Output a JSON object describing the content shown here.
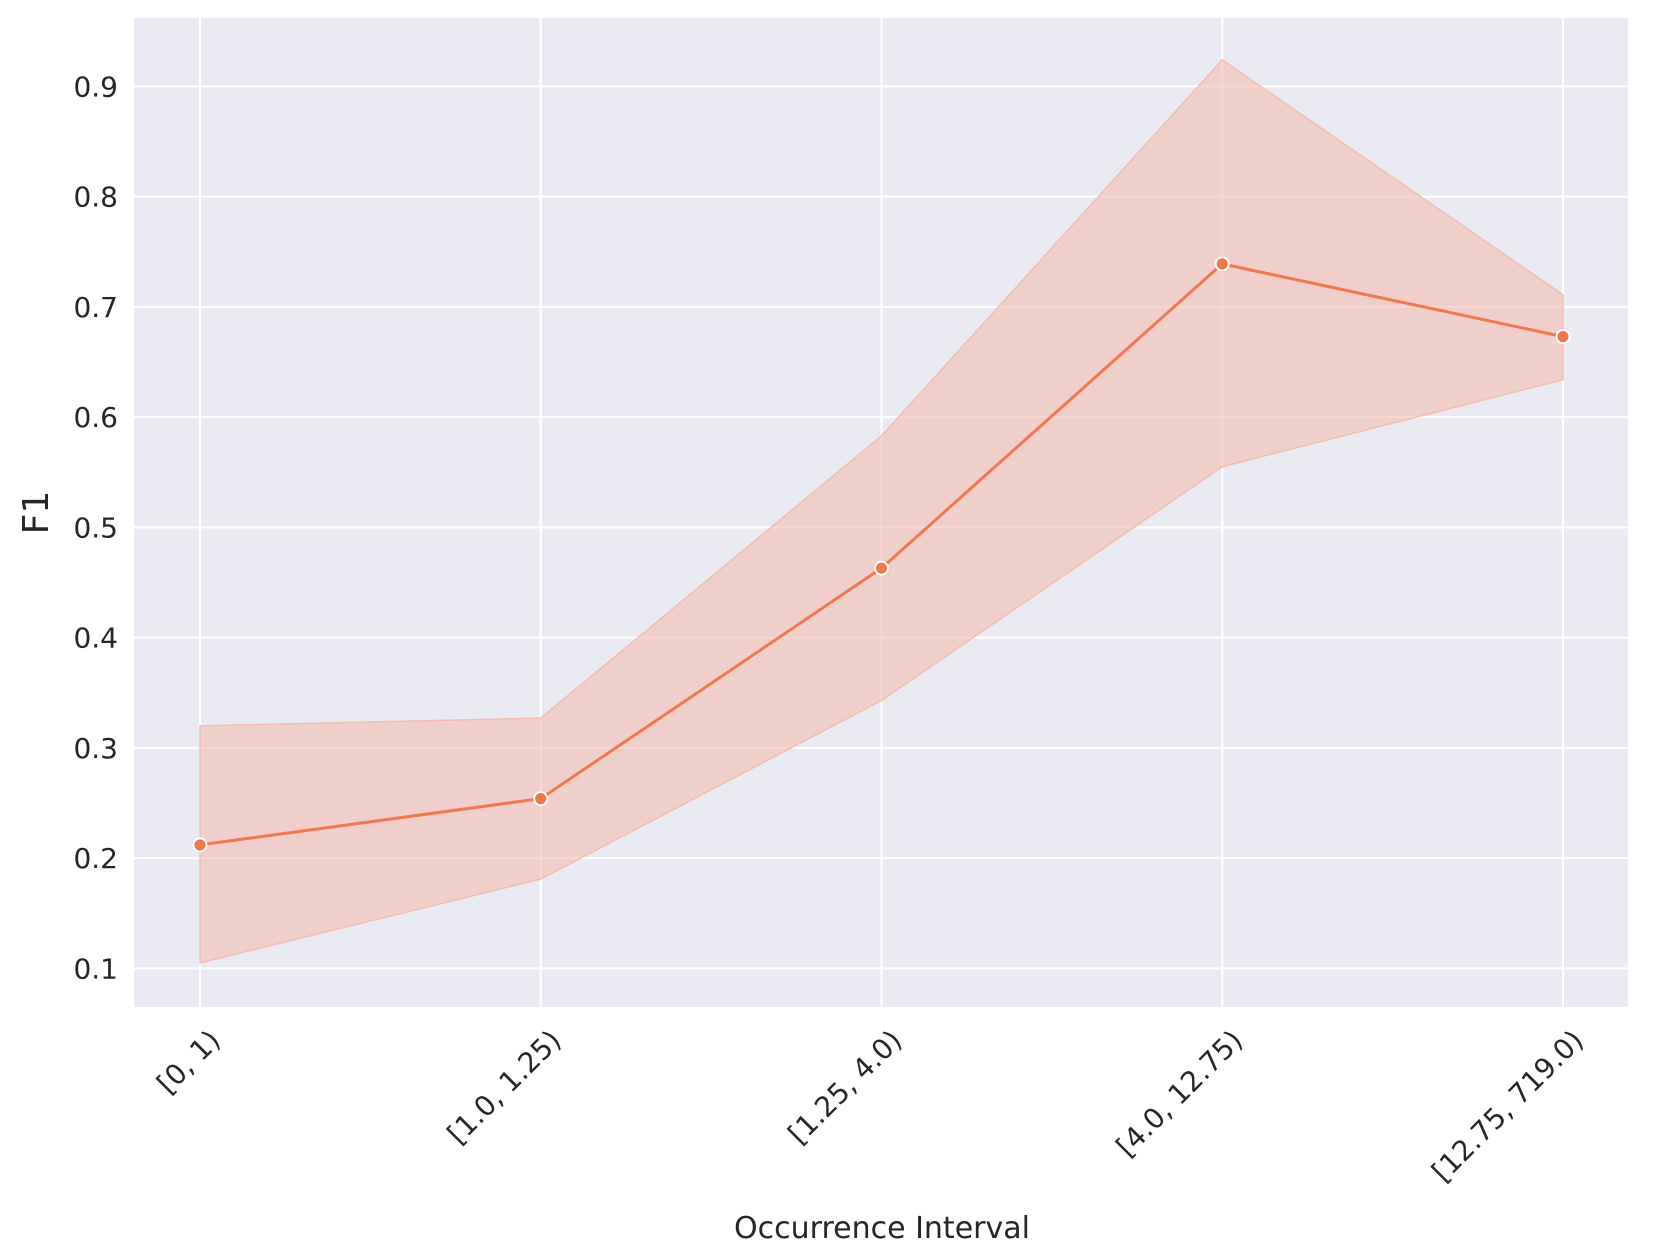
{
  "chart_data": {
    "type": "line",
    "title": "",
    "xlabel": "Occurrence Interval",
    "ylabel": "F1",
    "categories": [
      "[0, 1)",
      "[1.0, 1.25)",
      "[1.25, 4.0)",
      "[4.0, 12.75)",
      "[12.75, 719.0)"
    ],
    "series": [
      {
        "values": [
          0.212,
          0.254,
          0.463,
          0.739,
          0.673
        ],
        "ci_lower": [
          0.105,
          0.181,
          0.343,
          0.555,
          0.634
        ],
        "ci_upper": [
          0.32,
          0.327,
          0.583,
          0.924,
          0.711
        ],
        "color": "#f07850",
        "band_color": "#f4bcb0"
      }
    ],
    "yticks": [
      0.1,
      0.2,
      0.3,
      0.4,
      0.5,
      0.6,
      0.7,
      0.8,
      0.9
    ],
    "ytick_labels": [
      "0.1",
      "0.2",
      "0.3",
      "0.4",
      "0.5",
      "0.6",
      "0.7",
      "0.8",
      "0.9"
    ],
    "ylim": [
      0.065,
      0.962
    ],
    "grid": true,
    "background_color": "#eaeaf2",
    "grid_color": "#ffffff"
  }
}
